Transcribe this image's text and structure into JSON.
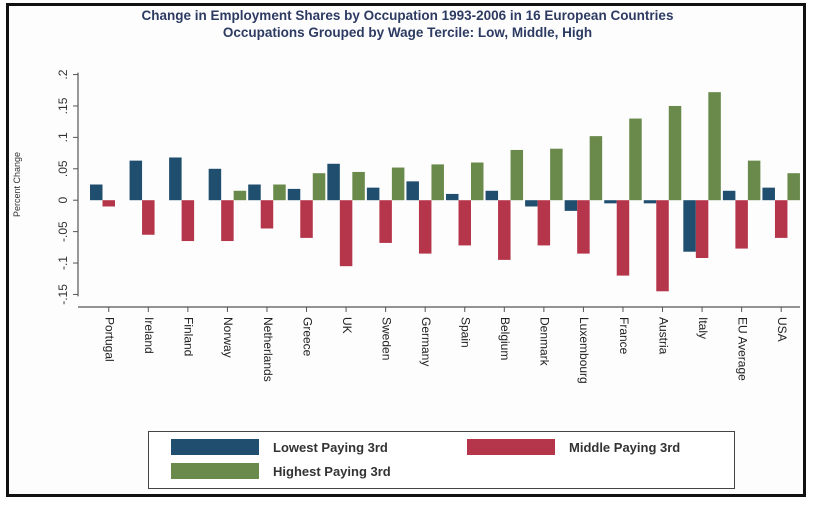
{
  "title": "Change in Employment Shares by Occupation 1993-2006 in 16 European Countries",
  "subtitle": "Occupations Grouped by Wage Tercile: Low, Middle, High",
  "colors": {
    "low": "#1f4e6e",
    "middle": "#b5364b",
    "high": "#6a8a4c",
    "axis": "#555555"
  },
  "chart_data": {
    "type": "bar",
    "title": "Change in Employment Shares by Occupation 1993-2006 in 16 European Countries",
    "subtitle": "Occupations Grouped by Wage Tercile: Low, Middle, High",
    "xlabel": "",
    "ylabel": "Percent Change",
    "ylim": [
      -0.17,
      0.22
    ],
    "yticks": [
      -0.15,
      -0.1,
      -0.05,
      0,
      0.05,
      0.1,
      0.15,
      0.2
    ],
    "ytick_labels": [
      "-.15",
      "-.1",
      "-.05",
      "0",
      ".05",
      ".1",
      ".15",
      ".2"
    ],
    "grid": false,
    "legend_position": "bottom",
    "categories": [
      "Portugal",
      "Ireland",
      "Finland",
      "Norway",
      "Netherlands",
      "Greece",
      "UK",
      "Sweden",
      "Germany",
      "Spain",
      "Belgium",
      "Denmark",
      "Luxembourg",
      "France",
      "Austria",
      "Italy",
      "EU Average",
      "USA"
    ],
    "series": [
      {
        "name": "Lowest Paying 3rd",
        "values": [
          0.025,
          0.063,
          0.068,
          0.05,
          0.025,
          0.018,
          0.058,
          0.02,
          0.03,
          0.01,
          0.015,
          -0.01,
          -0.017,
          -0.005,
          -0.005,
          -0.082,
          0.015,
          0.02
        ]
      },
      {
        "name": "Middle Paying 3rd",
        "values": [
          -0.01,
          -0.055,
          -0.065,
          -0.065,
          -0.045,
          -0.06,
          -0.105,
          -0.068,
          -0.085,
          -0.072,
          -0.095,
          -0.072,
          -0.085,
          -0.12,
          -0.145,
          -0.092,
          -0.077,
          -0.06
        ]
      },
      {
        "name": "Highest Paying 3rd",
        "values": [
          0.0,
          0.0,
          0.0,
          0.015,
          0.025,
          0.043,
          0.045,
          0.052,
          0.057,
          0.06,
          0.08,
          0.082,
          0.102,
          0.13,
          0.15,
          0.172,
          0.063,
          0.043
        ]
      }
    ]
  },
  "legend": [
    {
      "label": "Lowest Paying 3rd",
      "color": "#1f4e6e"
    },
    {
      "label": "Middle Paying 3rd",
      "color": "#b5364b"
    },
    {
      "label": "Highest Paying 3rd",
      "color": "#6a8a4c"
    }
  ]
}
